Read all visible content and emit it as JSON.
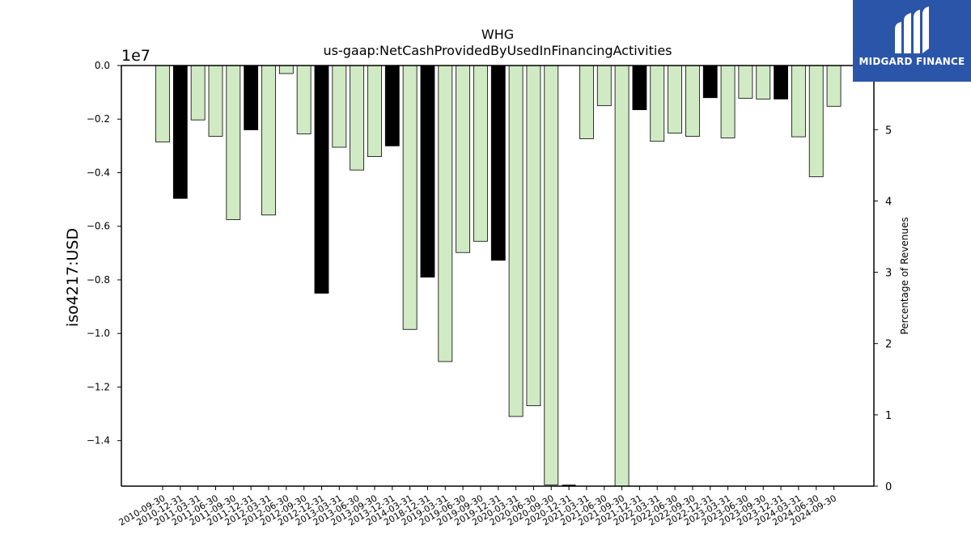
{
  "chart_data": {
    "type": "bar",
    "title": "WHG",
    "subtitle": "us-gaap:NetCashProvidedByUsedInFinancingActivities",
    "ylabel": "iso4217:USD",
    "y2label": "Percentage of Revenues",
    "offset_label": "1e7",
    "ylim": [
      -15700000,
      0
    ],
    "y2lim": [
      0,
      5.9
    ],
    "yticks": [
      0.0,
      -0.2,
      -0.4,
      -0.6,
      -0.8,
      -1.0,
      -1.2,
      -1.4
    ],
    "ytick_labels": [
      "0.0",
      "−0.2",
      "−0.4",
      "−0.6",
      "−0.8",
      "−1.0",
      "−1.2",
      "−1.4"
    ],
    "y2ticks": [
      0,
      1,
      2,
      3,
      4,
      5
    ],
    "colors": {
      "q": "#d0ebc4",
      "fy": "#000000",
      "edge": "#000000"
    },
    "categories": [
      "2010-09-30",
      "2010-12-31",
      "2011-03-31",
      "2011-06-30",
      "2011-09-30",
      "2011-12-31",
      "2012-03-31",
      "2012-06-30",
      "2012-09-30",
      "2012-12-31",
      "2013-03-31",
      "2013-06-30",
      "2013-09-30",
      "2013-12-31",
      "2014-03-31",
      "2018-12-31",
      "2019-03-31",
      "2019-06-30",
      "2019-09-30",
      "2019-12-31",
      "2020-03-31",
      "2020-06-30",
      "2020-09-30",
      "2020-12-31",
      "2021-03-31",
      "2021-06-30",
      "2021-09-30",
      "2021-12-31",
      "2022-03-31",
      "2022-06-30",
      "2022-09-30",
      "2022-12-31",
      "2023-03-31",
      "2023-06-30",
      "2023-09-30",
      "2023-12-31",
      "2024-03-31",
      "2024-06-30",
      "2024-09-30"
    ],
    "values": [
      -2850000,
      -4960000,
      -2030000,
      -2640000,
      -5750000,
      -2400000,
      -5580000,
      -300000,
      -2550000,
      -8500000,
      -3050000,
      -3900000,
      -3400000,
      -3000000,
      -9850000,
      -7900000,
      -11050000,
      -6980000,
      -6560000,
      -7270000,
      -13100000,
      -12700000,
      -15650000,
      0,
      -2730000,
      -1500000,
      -15700000,
      -1650000,
      -2830000,
      -2520000,
      -2640000,
      -1200000,
      -2700000,
      -1220000,
      -1250000,
      -1250000,
      -2660000,
      -4150000,
      -1520000
    ],
    "annual": [
      false,
      true,
      false,
      false,
      false,
      true,
      false,
      false,
      false,
      true,
      false,
      false,
      false,
      true,
      false,
      true,
      false,
      false,
      false,
      true,
      false,
      false,
      false,
      true,
      false,
      false,
      false,
      true,
      false,
      false,
      false,
      true,
      false,
      false,
      false,
      true,
      false,
      false,
      false
    ]
  },
  "logo": {
    "text": "MIDGARD FINANCE"
  }
}
